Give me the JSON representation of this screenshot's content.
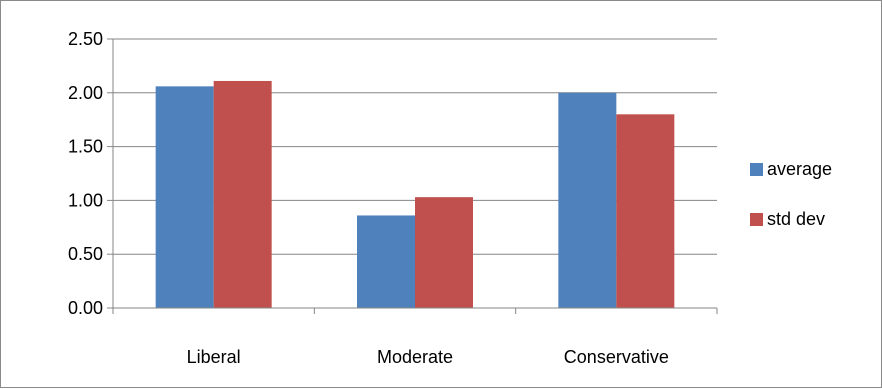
{
  "chart_data": {
    "type": "bar",
    "categories": [
      "Liberal",
      "Moderate",
      "Conservative"
    ],
    "series": [
      {
        "name": "average",
        "values": [
          2.06,
          0.86,
          2.0
        ],
        "color": "#4F81BD"
      },
      {
        "name": "std dev",
        "values": [
          2.11,
          1.03,
          1.8
        ],
        "color": "#C0504D"
      }
    ],
    "ylim": [
      0,
      2.5
    ],
    "yticks": [
      "0.00",
      "0.50",
      "1.00",
      "1.50",
      "2.00",
      "2.50"
    ],
    "title": "",
    "xlabel": "",
    "ylabel": "",
    "grid": true,
    "legend_position": "right"
  }
}
